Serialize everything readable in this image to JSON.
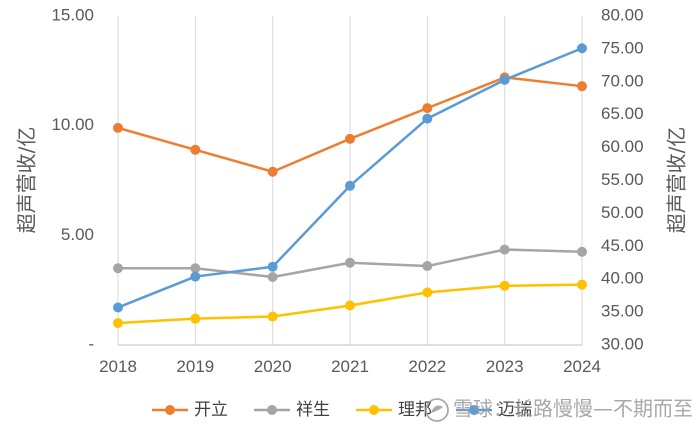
{
  "chart_data": {
    "type": "line",
    "categories": [
      "2018",
      "2019",
      "2020",
      "2021",
      "2022",
      "2023",
      "2024"
    ],
    "y_left": {
      "label": "超声营收/亿",
      "ticks": [
        "-",
        "5.00",
        "10.00",
        "15.00"
      ],
      "tick_values": [
        0,
        5,
        10,
        15
      ],
      "range": [
        0,
        15
      ]
    },
    "y_right": {
      "label": "超声营收/亿",
      "ticks": [
        "30.00",
        "35.00",
        "40.00",
        "45.00",
        "50.00",
        "55.00",
        "60.00",
        "65.00",
        "70.00",
        "75.00",
        "80.00"
      ],
      "tick_values": [
        30,
        35,
        40,
        45,
        50,
        55,
        60,
        65,
        70,
        75,
        80
      ],
      "range": [
        30,
        80
      ]
    },
    "series": [
      {
        "name": "开立",
        "axis": "left",
        "color": "#ED7D31",
        "values": [
          9.9,
          8.9,
          7.9,
          9.4,
          10.8,
          12.2,
          11.8
        ]
      },
      {
        "name": "祥生",
        "axis": "left",
        "color": "#A5A5A5",
        "values": [
          3.5,
          3.5,
          3.1,
          3.75,
          3.6,
          4.35,
          4.25
        ]
      },
      {
        "name": "理邦",
        "axis": "left",
        "color": "#FFC000",
        "values": [
          1.0,
          1.2,
          1.3,
          1.8,
          2.4,
          2.7,
          2.75
        ]
      },
      {
        "name": "迈瑞",
        "axis": "right",
        "color": "#5B9BD5",
        "values": [
          35.7,
          40.4,
          41.9,
          54.2,
          64.4,
          70.3,
          75.1
        ]
      }
    ],
    "grid": "vertical",
    "legend_position": "bottom"
  },
  "watermark": {
    "text": "雪球：长路慢慢—不期而至",
    "icon": "snowball-logo-icon"
  }
}
